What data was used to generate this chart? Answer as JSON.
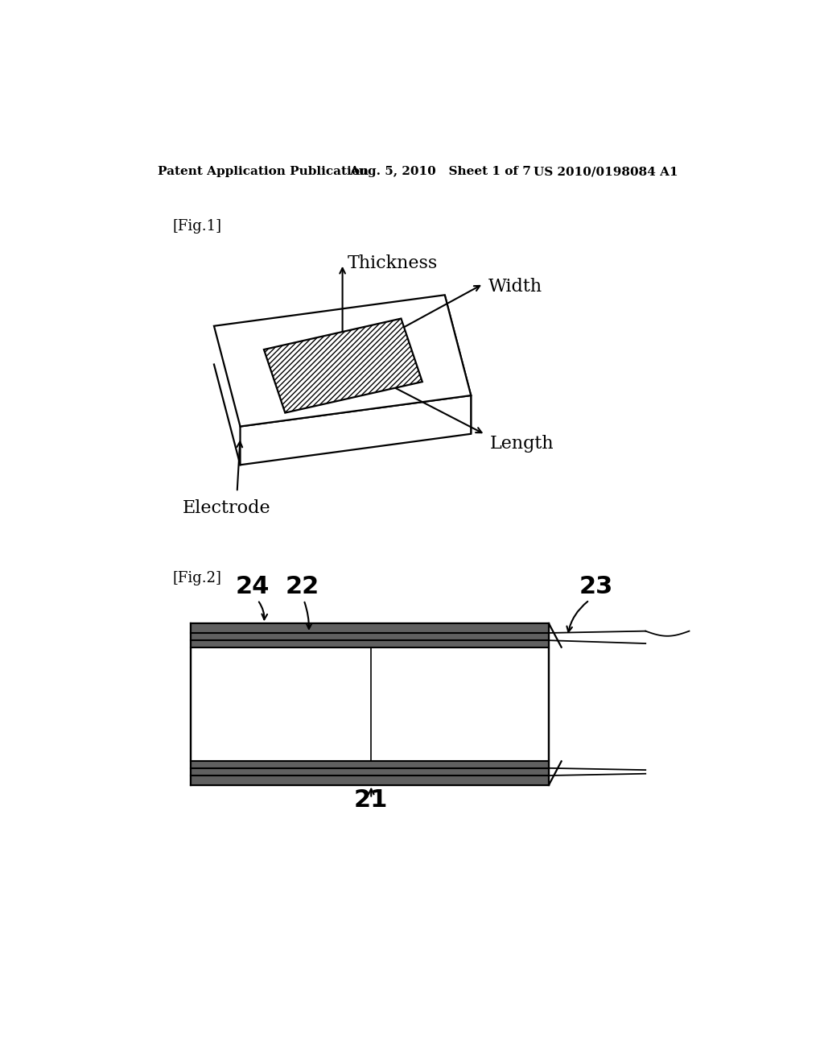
{
  "bg_color": "#ffffff",
  "header_left": "Patent Application Publication",
  "header_mid": "Aug. 5, 2010   Sheet 1 of 7",
  "header_right": "US 2010/0198084 A1",
  "fig1_label": "[Fig.1]",
  "fig2_label": "[Fig.2]",
  "thickness_label": "Thickness",
  "width_label": "Width",
  "length_label": "Length",
  "electrode_label": "Electrode",
  "label_24": "24",
  "label_22": "22",
  "label_23": "23",
  "label_21": "21",
  "line_color": "#000000",
  "text_color": "#000000",
  "header_fontsize": 11,
  "fig_label_fontsize": 13,
  "dim_label_fontsize": 16,
  "part_num_fontsize": 22
}
